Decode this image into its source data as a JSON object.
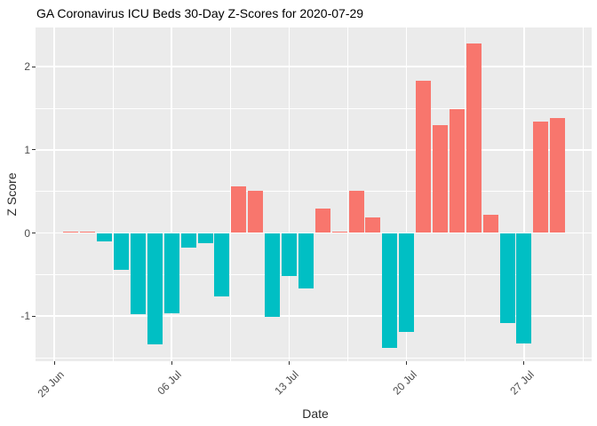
{
  "title": "GA Coronavirus ICU Beds 30-Day Z-Scores for 2020-07-29",
  "chart_data": {
    "type": "bar",
    "title": "GA Coronavirus ICU Beds 30-Day Z-Scores for 2020-07-29",
    "xlabel": "Date",
    "ylabel": "Z Score",
    "x": [
      "2020-06-30",
      "2020-07-01",
      "2020-07-02",
      "2020-07-03",
      "2020-07-04",
      "2020-07-05",
      "2020-07-06",
      "2020-07-07",
      "2020-07-08",
      "2020-07-09",
      "2020-07-10",
      "2020-07-11",
      "2020-07-12",
      "2020-07-13",
      "2020-07-14",
      "2020-07-15",
      "2020-07-16",
      "2020-07-17",
      "2020-07-18",
      "2020-07-19",
      "2020-07-20",
      "2020-07-21",
      "2020-07-22",
      "2020-07-23",
      "2020-07-24",
      "2020-07-25",
      "2020-07-26",
      "2020-07-27",
      "2020-07-28",
      "2020-07-29"
    ],
    "values": [
      0.02,
      0.02,
      -0.1,
      -0.44,
      -0.98,
      -1.34,
      -0.97,
      -0.18,
      -0.12,
      -0.76,
      0.56,
      0.51,
      -1.01,
      -0.52,
      -0.67,
      0.29,
      0.02,
      0.51,
      0.19,
      -1.38,
      -1.19,
      1.83,
      1.3,
      1.49,
      2.28,
      0.22,
      -1.08,
      -1.33,
      1.34,
      1.38
    ],
    "x_origin_date": "2020-06-29",
    "x_tick_labels": [
      "29 Jun",
      "06 Jul",
      "13 Jul",
      "20 Jul",
      "27 Jul"
    ],
    "x_tick_dates": [
      "2020-06-29",
      "2020-07-06",
      "2020-07-13",
      "2020-07-20",
      "2020-07-27"
    ],
    "y_ticks": [
      -1,
      0,
      1,
      2
    ],
    "y_minor_ticks": [
      -1.5,
      -0.5,
      0.5,
      1.5
    ],
    "ylim": [
      -1.55,
      2.47
    ],
    "grid": true,
    "legend_position": "none",
    "bar_color_positive": "#F8766D",
    "bar_color_negative": "#00BFC4",
    "panel_bg": "#EBEBEB",
    "grid_color": "#FFFFFF",
    "axis_text_color": "#4d4d4d"
  }
}
